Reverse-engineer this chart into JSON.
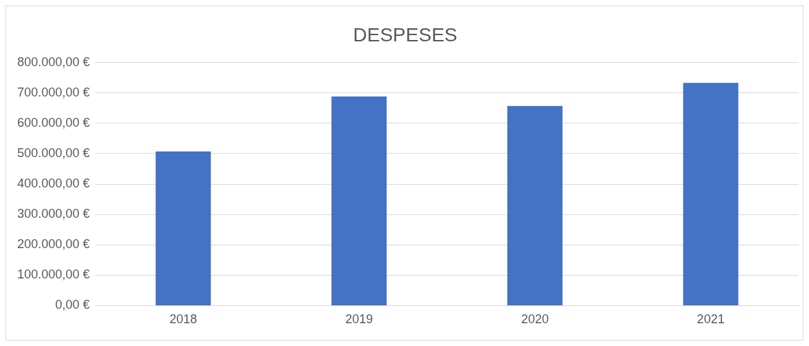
{
  "chart_data": {
    "type": "bar",
    "title": "DESPESES",
    "categories": [
      "2018",
      "2019",
      "2020",
      "2021"
    ],
    "values": [
      507000,
      688000,
      657000,
      733000
    ],
    "color": "#4472c4",
    "ylim": [
      0,
      800000
    ],
    "yticks": [
      {
        "value": 0,
        "label": "0,00 €"
      },
      {
        "value": 100000,
        "label": "100.000,00 €"
      },
      {
        "value": 200000,
        "label": "200.000,00 €"
      },
      {
        "value": 300000,
        "label": "300.000,00 €"
      },
      {
        "value": 400000,
        "label": "400.000,00 €"
      },
      {
        "value": 500000,
        "label": "500.000,00 €"
      },
      {
        "value": 600000,
        "label": "600.000,00 €"
      },
      {
        "value": 700000,
        "label": "700.000,00 €"
      },
      {
        "value": 800000,
        "label": "800.000,00 €"
      }
    ],
    "grid": "y",
    "legend": false
  }
}
